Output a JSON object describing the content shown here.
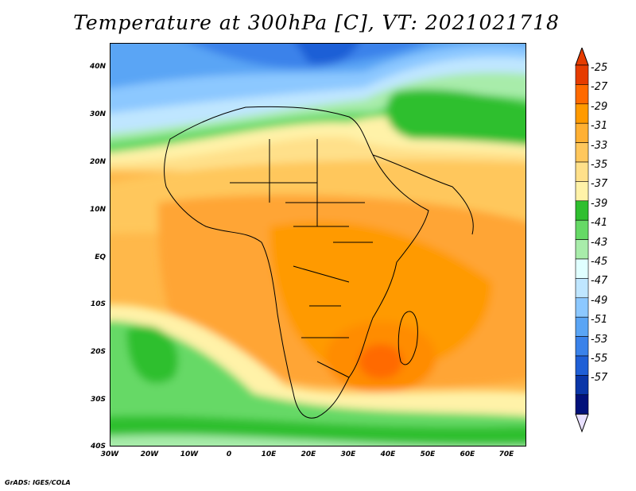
{
  "title": "Temperature at 300hPa [C], VT: 2021021718",
  "footer": "GrADS: IGES/COLA",
  "axes": {
    "lat_labels": [
      "40N",
      "30N",
      "20N",
      "10N",
      "EQ",
      "10S",
      "20S",
      "30S",
      "40S"
    ],
    "lon_labels": [
      "30W",
      "20W",
      "10W",
      "0",
      "10E",
      "20E",
      "30E",
      "40E",
      "50E",
      "60E",
      "70E"
    ]
  },
  "colorbar": {
    "labels": [
      "-25",
      "-27",
      "-29",
      "-31",
      "-33",
      "-35",
      "-37",
      "-39",
      "-41",
      "-43",
      "-45",
      "-47",
      "-49",
      "-51",
      "-53",
      "-55",
      "-57"
    ],
    "colors": [
      "#e63c00",
      "#ff6a00",
      "#ff9a00",
      "#ffb033",
      "#ffc75c",
      "#ffe08a",
      "#fff2a8",
      "#2fbf2f",
      "#66d966",
      "#a8ecaa",
      "#e0ffff",
      "#bfe6ff",
      "#8cc8ff",
      "#5aa5f5",
      "#3a82ea",
      "#1f5fd6",
      "#0a36a8",
      "#02117a"
    ],
    "top_triangle_color": "#e63c00",
    "bottom_triangle_color": "#e8e0ff"
  }
}
